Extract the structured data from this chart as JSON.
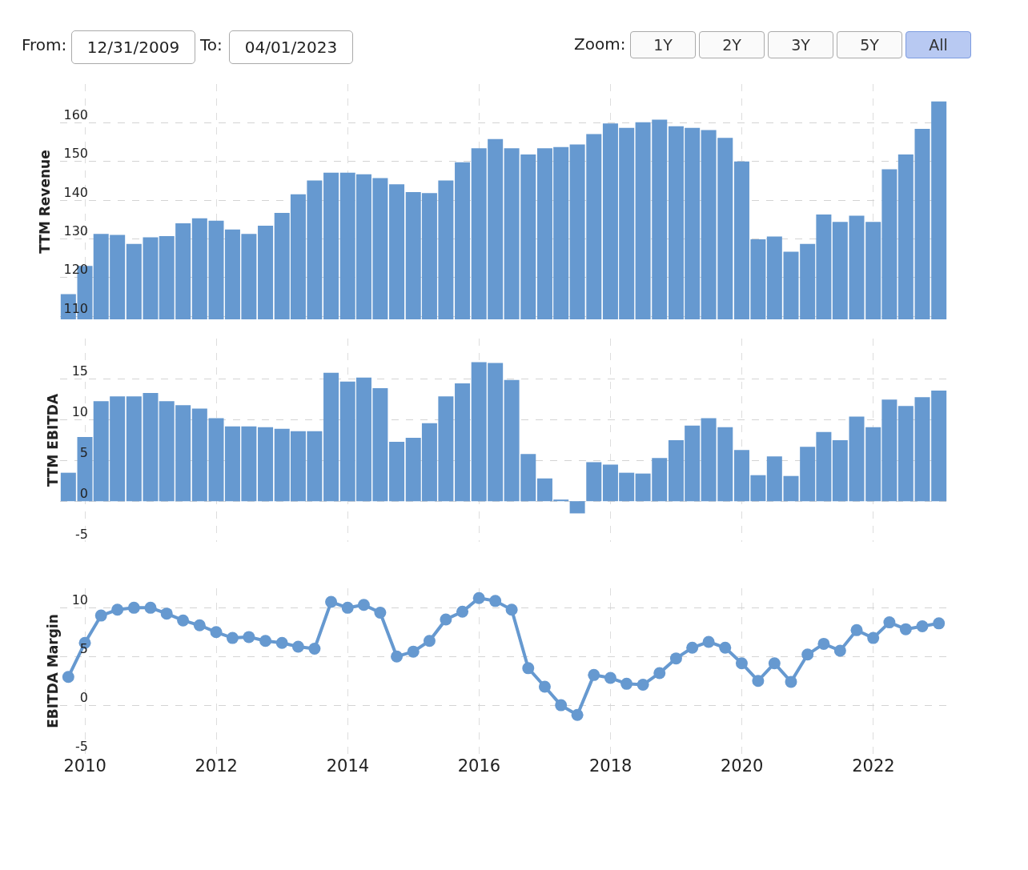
{
  "chart_data": [
    {
      "type": "other",
      "annotations": [
        "From:",
        "12/31/2009",
        "To:",
        "04/01/2023",
        "Zoom:",
        "1Y",
        "2Y",
        "3Y",
        "5Y",
        "All"
      ]
    },
    {
      "type": "bar",
      "ylabel": "TTM Revenue",
      "color": "#6699d0",
      "grid": true,
      "tick_labels": "y",
      "x": [
        "2009-09-30",
        "2009-12-31",
        "2010-03-31",
        "2010-06-30",
        "2010-09-30",
        "2010-12-31",
        "2011-03-31",
        "2011-06-30",
        "2011-09-30",
        "2011-12-31",
        "2012-03-31",
        "2012-06-30",
        "2012-09-30",
        "2012-12-31",
        "2013-03-31",
        "2013-06-30",
        "2013-09-30",
        "2013-12-31",
        "2014-03-31",
        "2014-06-30",
        "2014-09-30",
        "2014-12-31",
        "2015-03-31",
        "2015-06-30",
        "2015-09-30",
        "2015-12-31",
        "2016-03-31",
        "2016-06-30",
        "2016-09-30",
        "2016-12-31",
        "2017-03-31",
        "2017-06-30",
        "2017-09-30",
        "2017-12-31",
        "2018-03-31",
        "2018-06-30",
        "2018-09-30",
        "2018-12-31",
        "2019-03-31",
        "2019-06-30",
        "2019-09-30",
        "2019-12-31",
        "2020-03-31",
        "2020-06-30",
        "2020-09-30",
        "2020-12-31",
        "2021-03-31",
        "2021-06-30",
        "2021-09-30",
        "2021-12-31",
        "2022-03-31",
        "2022-06-30",
        "2022-09-30",
        "2022-12-31"
      ],
      "values": [
        115.7,
        123.0,
        131.3,
        131.0,
        128.7,
        130.4,
        130.7,
        134.0,
        135.3,
        134.7,
        132.4,
        131.3,
        133.4,
        136.7,
        141.5,
        145.1,
        147.1,
        147.1,
        146.7,
        145.7,
        144.1,
        142.1,
        141.8,
        145.1,
        149.8,
        153.4,
        155.8,
        153.4,
        151.8,
        153.4,
        153.7,
        154.4,
        157.1,
        159.8,
        158.7,
        160.1,
        160.8,
        159.1,
        158.7,
        158.1,
        156.1,
        150.0,
        129.9,
        130.6,
        126.7,
        128.7,
        136.3,
        134.4,
        136.0,
        134.4,
        148.0,
        151.8,
        158.4,
        165.5
      ],
      "xlim": [
        "2009-08-15",
        "2023-02-15"
      ],
      "xticks": [
        "2010",
        "2012",
        "2014",
        "2016",
        "2018",
        "2020",
        "2022"
      ],
      "ylim": [
        109.2,
        170
      ],
      "yticks": [
        110,
        120,
        130,
        140,
        150,
        160
      ]
    },
    {
      "type": "bar",
      "ylabel": "TTM EBITDA",
      "color": "#6699d0",
      "grid": true,
      "tick_labels": "y",
      "x": [
        "2009-09-30",
        "2009-12-31",
        "2010-03-31",
        "2010-06-30",
        "2010-09-30",
        "2010-12-31",
        "2011-03-31",
        "2011-06-30",
        "2011-09-30",
        "2011-12-31",
        "2012-03-31",
        "2012-06-30",
        "2012-09-30",
        "2012-12-31",
        "2013-03-31",
        "2013-06-30",
        "2013-09-30",
        "2013-12-31",
        "2014-03-31",
        "2014-06-30",
        "2014-09-30",
        "2014-12-31",
        "2015-03-31",
        "2015-06-30",
        "2015-09-30",
        "2015-12-31",
        "2016-03-31",
        "2016-06-30",
        "2016-09-30",
        "2016-12-31",
        "2017-03-31",
        "2017-06-30",
        "2017-09-30",
        "2017-12-31",
        "2018-03-31",
        "2018-06-30",
        "2018-09-30",
        "2018-12-31",
        "2019-03-31",
        "2019-06-30",
        "2019-09-30",
        "2019-12-31",
        "2020-03-31",
        "2020-06-30",
        "2020-09-30",
        "2020-12-31",
        "2021-03-31",
        "2021-06-30",
        "2021-09-30",
        "2021-12-31",
        "2022-03-31",
        "2022-06-30",
        "2022-09-30",
        "2022-12-31"
      ],
      "values": [
        3.5,
        7.9,
        12.3,
        12.9,
        12.9,
        13.3,
        12.3,
        11.8,
        11.4,
        10.2,
        9.2,
        9.2,
        9.1,
        8.9,
        8.6,
        8.6,
        15.8,
        14.7,
        15.2,
        13.9,
        7.3,
        7.8,
        9.6,
        12.9,
        14.5,
        17.1,
        17.0,
        14.9,
        5.8,
        2.8,
        0.2,
        -1.5,
        4.8,
        4.5,
        3.5,
        3.4,
        5.3,
        7.5,
        9.3,
        10.2,
        9.1,
        6.3,
        3.2,
        5.5,
        3.1,
        6.7,
        8.5,
        7.5,
        10.4,
        9.1,
        12.5,
        11.7,
        12.8,
        13.6
      ],
      "xlim": [
        "2009-08-15",
        "2023-02-15"
      ],
      "xticks": [
        "2010",
        "2012",
        "2014",
        "2016",
        "2018",
        "2020",
        "2022"
      ],
      "ylim": [
        -5,
        20
      ],
      "yticks": [
        -5,
        0,
        5,
        10,
        15
      ]
    },
    {
      "type": "line",
      "ylabel": "EBITDA Margin",
      "color": "#6699d0",
      "grid": true,
      "marker": "circle",
      "line_style": "solid",
      "x": [
        "2009-09-30",
        "2009-12-31",
        "2010-03-31",
        "2010-06-30",
        "2010-09-30",
        "2010-12-31",
        "2011-03-31",
        "2011-06-30",
        "2011-09-30",
        "2011-12-31",
        "2012-03-31",
        "2012-06-30",
        "2012-09-30",
        "2012-12-31",
        "2013-03-31",
        "2013-06-30",
        "2013-09-30",
        "2013-12-31",
        "2014-03-31",
        "2014-06-30",
        "2014-09-30",
        "2014-12-31",
        "2015-03-31",
        "2015-06-30",
        "2015-09-30",
        "2015-12-31",
        "2016-03-31",
        "2016-06-30",
        "2016-09-30",
        "2016-12-31",
        "2017-03-31",
        "2017-06-30",
        "2017-09-30",
        "2017-12-31",
        "2018-03-31",
        "2018-06-30",
        "2018-09-30",
        "2018-12-31",
        "2019-03-31",
        "2019-06-30",
        "2019-09-30",
        "2019-12-31",
        "2020-03-31",
        "2020-06-30",
        "2020-09-30",
        "2020-12-31",
        "2021-03-31",
        "2021-06-30",
        "2021-09-30",
        "2021-12-31",
        "2022-03-31",
        "2022-06-30",
        "2022-09-30",
        "2022-12-31"
      ],
      "values": [
        2.9,
        6.4,
        9.2,
        9.8,
        10.0,
        10.0,
        9.4,
        8.7,
        8.2,
        7.5,
        6.9,
        7.0,
        6.6,
        6.4,
        6.0,
        5.8,
        10.6,
        10.0,
        10.3,
        9.5,
        5.0,
        5.5,
        6.6,
        8.8,
        9.6,
        11.0,
        10.7,
        9.8,
        3.8,
        1.9,
        0.0,
        -1.0,
        3.1,
        2.8,
        2.2,
        2.1,
        3.3,
        4.8,
        5.9,
        6.5,
        5.9,
        4.3,
        2.5,
        4.3,
        2.4,
        5.2,
        6.3,
        5.6,
        7.7,
        6.9,
        8.5,
        7.8,
        8.1,
        8.4
      ],
      "xlim": [
        "2009-08-15",
        "2023-02-15"
      ],
      "xticks": [
        "2010",
        "2012",
        "2014",
        "2016",
        "2018",
        "2020",
        "2022"
      ],
      "ylim": [
        -5,
        12
      ],
      "yticks": [
        -5,
        0,
        5,
        10
      ]
    }
  ]
}
